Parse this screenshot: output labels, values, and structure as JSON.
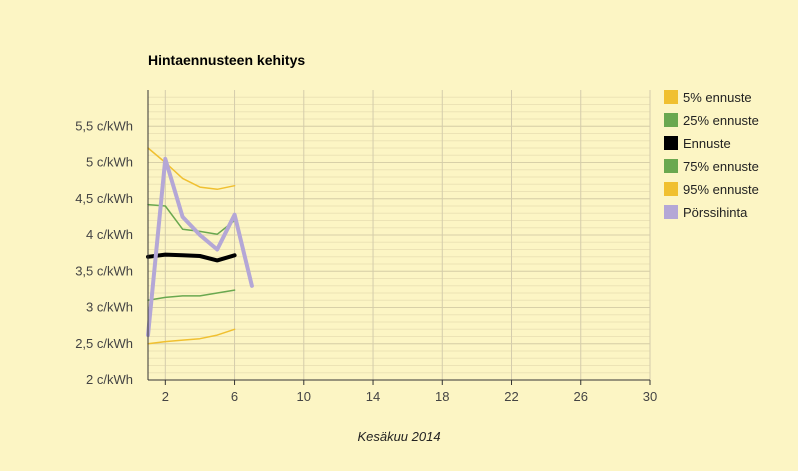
{
  "chart_data": {
    "type": "line",
    "title": "Hintaennusteen kehitys",
    "xlabel": "Kesäkuu 2014",
    "ylabel": "",
    "xlim": [
      1,
      30
    ],
    "ylim": [
      2,
      6
    ],
    "x_ticks": [
      2,
      6,
      10,
      14,
      18,
      22,
      26,
      30
    ],
    "y_ticks": [
      2,
      2.5,
      3,
      3.5,
      4,
      4.5,
      5,
      5.5
    ],
    "y_tick_labels": [
      "2 c/kWh",
      "2,5 c/kWh",
      "3 c/kWh",
      "3,5 c/kWh",
      "4 c/kWh",
      "4,5 c/kWh",
      "5 c/kWh",
      "5,5 c/kWh"
    ],
    "grid": true,
    "legend_position": "right",
    "series": [
      {
        "name": "5% ennuste",
        "color": "#f0c030",
        "width": 1.5,
        "x": [
          1,
          2,
          3,
          4,
          5,
          6
        ],
        "values": [
          2.5,
          2.53,
          2.55,
          2.57,
          2.62,
          2.7
        ]
      },
      {
        "name": "25% ennuste",
        "color": "#6aa84f",
        "width": 1.5,
        "x": [
          1,
          2,
          3,
          4,
          5,
          6
        ],
        "values": [
          4.42,
          4.4,
          4.08,
          4.05,
          4.01,
          4.2
        ]
      },
      {
        "name": "Ennuste",
        "color": "#000000",
        "width": 4,
        "x": [
          1,
          2,
          3,
          4,
          5,
          6
        ],
        "values": [
          3.7,
          3.73,
          3.72,
          3.71,
          3.65,
          3.72
        ]
      },
      {
        "name": "75% ennuste",
        "color": "#6aa84f",
        "width": 1.5,
        "x": [
          1,
          2,
          3,
          4,
          5,
          6
        ],
        "values": [
          3.1,
          3.14,
          3.16,
          3.16,
          3.2,
          3.24
        ]
      },
      {
        "name": "95% ennuste",
        "color": "#f0c030",
        "width": 1.5,
        "x": [
          1,
          2,
          3,
          4,
          5,
          6
        ],
        "values": [
          5.2,
          5.0,
          4.78,
          4.66,
          4.63,
          4.68
        ]
      },
      {
        "name": "Pörssihinta",
        "color": "#b4a7d6",
        "width": 4,
        "x": [
          1,
          2,
          3,
          4,
          5,
          6,
          7
        ],
        "values": [
          2.62,
          5.05,
          4.25,
          4.0,
          3.8,
          4.28,
          3.3
        ]
      }
    ]
  }
}
